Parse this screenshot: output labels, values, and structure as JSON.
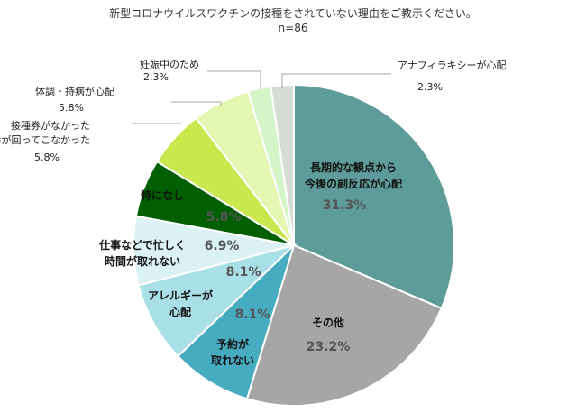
{
  "chart_data": {
    "type": "pie",
    "title": "新型コロナウイルスワクチンの接種をされていない理由をご教示ください。",
    "subtitle": "n=86",
    "slices": [
      {
        "id": "chouki",
        "label_lines": [
          "長期的な観点から",
          "今後の副反応が心配"
        ],
        "pct_text": "31.3%",
        "value": 31.3,
        "color": "#5e9c9a",
        "placement": "inside"
      },
      {
        "id": "sonota",
        "label_lines": [
          "その他"
        ],
        "pct_text": "23.2%",
        "value": 23.2,
        "color": "#a6a6a6",
        "placement": "inside"
      },
      {
        "id": "yoyaku",
        "label_lines": [
          "予約が",
          "取れない"
        ],
        "pct_text": "8.1%",
        "value": 8.1,
        "color": "#48acc1",
        "placement": "inside"
      },
      {
        "id": "allergy",
        "label_lines": [
          "アレルギーが",
          "心配"
        ],
        "pct_text": "8.1%",
        "value": 8.1,
        "color": "#a9dfe6",
        "placement": "inside"
      },
      {
        "id": "shigoto",
        "label_lines": [
          "仕事などで忙しく",
          "時間が取れない"
        ],
        "pct_text": "6.9%",
        "value": 6.9,
        "color": "#dbf1f4",
        "placement": "inside"
      },
      {
        "id": "tokuni",
        "label_lines": [
          "特になし"
        ],
        "pct_text": "5.8%",
        "value": 5.8,
        "color": "#005f00",
        "placement": "inside"
      },
      {
        "id": "junban",
        "label_lines": [
          "接種券がなかった",
          "順番が回ってこなかった"
        ],
        "pct_text": "5.8%",
        "value": 5.8,
        "color": "#c8e84e",
        "placement": "outside"
      },
      {
        "id": "taichou",
        "label_lines": [
          "体調・持病が心配"
        ],
        "pct_text": "5.8%",
        "value": 5.8,
        "color": "#e4f7b2",
        "placement": "outside"
      },
      {
        "id": "ninshin",
        "label_lines": [
          "妊娠中のため"
        ],
        "pct_text": "2.3%",
        "value": 2.3,
        "color": "#d3f5c8",
        "placement": "outside"
      },
      {
        "id": "anaphy",
        "label_lines": [
          "アナフィラキシーが心配"
        ],
        "pct_text": "2.3%",
        "value": 2.3,
        "color": "#d4dcd4",
        "placement": "outside"
      }
    ]
  }
}
